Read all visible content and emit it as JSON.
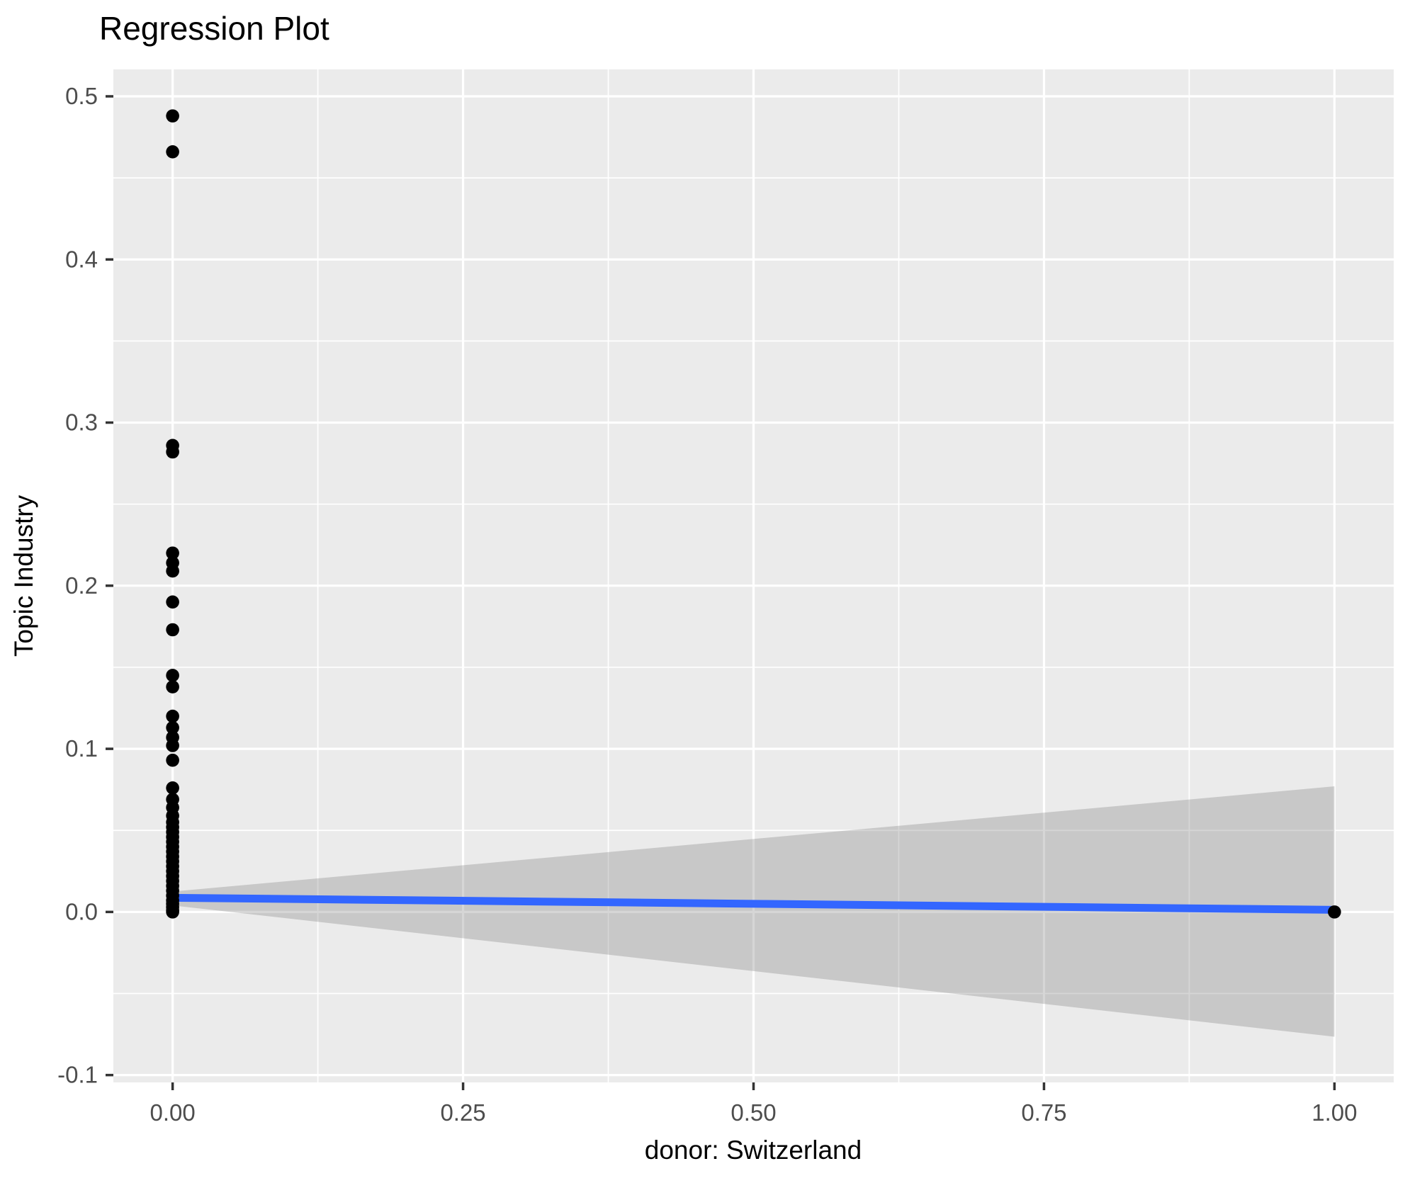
{
  "chart_data": {
    "type": "scatter",
    "title": "Regression Plot",
    "xlabel": "donor: Switzerland",
    "ylabel": "Topic Industry",
    "xlim": [
      -0.051,
      1.051
    ],
    "ylim": [
      -0.1045,
      0.5165
    ],
    "grid": true,
    "legend": false,
    "x_major_ticks": [
      0,
      0.25,
      0.5,
      0.75,
      1
    ],
    "x_tick_labels": [
      "0.00",
      "0.25",
      "0.50",
      "0.75",
      "1.00"
    ],
    "x_minor_ticks": [
      0.125,
      0.375,
      0.625,
      0.875
    ],
    "y_major_ticks": [
      -0.1,
      0,
      0.1,
      0.2,
      0.3,
      0.4,
      0.5
    ],
    "y_tick_labels": [
      "-0.1",
      "0.0",
      "0.1",
      "0.2",
      "0.3",
      "0.4",
      "0.5"
    ],
    "y_minor_ticks": [
      -0.05,
      0.05,
      0.15,
      0.25,
      0.35,
      0.45
    ],
    "series": [
      {
        "name": "observations",
        "type": "scatter",
        "color": "#000000",
        "point_radius": 9.3,
        "points": [
          [
            0,
            0.488
          ],
          [
            0,
            0.466
          ],
          [
            0,
            0.286
          ],
          [
            0,
            0.282
          ],
          [
            0,
            0.22
          ],
          [
            0,
            0.214
          ],
          [
            0,
            0.209
          ],
          [
            0,
            0.19
          ],
          [
            0,
            0.173
          ],
          [
            0,
            0.145
          ],
          [
            0,
            0.138
          ],
          [
            0,
            0.12
          ],
          [
            0,
            0.113
          ],
          [
            0,
            0.107
          ],
          [
            0,
            0.102
          ],
          [
            0,
            0.093
          ],
          [
            0,
            0.076
          ],
          [
            0,
            0.069
          ],
          [
            0,
            0.064
          ],
          [
            0,
            0.059
          ],
          [
            0,
            0.055
          ],
          [
            0,
            0.052
          ],
          [
            0,
            0.049
          ],
          [
            0,
            0.046
          ],
          [
            0,
            0.043
          ],
          [
            0,
            0.04
          ],
          [
            0,
            0.037
          ],
          [
            0,
            0.034
          ],
          [
            0,
            0.031
          ],
          [
            0,
            0.028
          ],
          [
            0,
            0.025
          ],
          [
            0,
            0.022
          ],
          [
            0,
            0.019
          ],
          [
            0,
            0.016
          ],
          [
            0,
            0.013
          ],
          [
            0,
            0.01
          ],
          [
            0,
            0.007
          ],
          [
            0,
            0.005
          ],
          [
            0,
            0.003
          ],
          [
            0,
            0.001
          ],
          [
            0,
            0.0
          ],
          [
            1,
            0.0
          ]
        ]
      },
      {
        "name": "fitted-regression-line",
        "type": "line",
        "color": "#3366FF",
        "stroke_width": 11,
        "points": [
          [
            0,
            0.0087
          ],
          [
            1,
            0.0013
          ]
        ]
      },
      {
        "name": "confidence-interval-band",
        "type": "area",
        "color": "#7F7F7F",
        "opacity": 0.32,
        "upper": [
          [
            0,
            0.0125
          ],
          [
            1,
            0.077
          ]
        ],
        "lower": [
          [
            0,
            0.004
          ],
          [
            1,
            -0.0765
          ]
        ]
      }
    ],
    "colors": {
      "panel_background": "#EBEBEB",
      "grid_major": "#FFFFFF",
      "grid_minor": "#FFFFFF",
      "tick_labels": "#4D4D4D",
      "tick_marks": "#333333",
      "text": "#000000"
    }
  }
}
